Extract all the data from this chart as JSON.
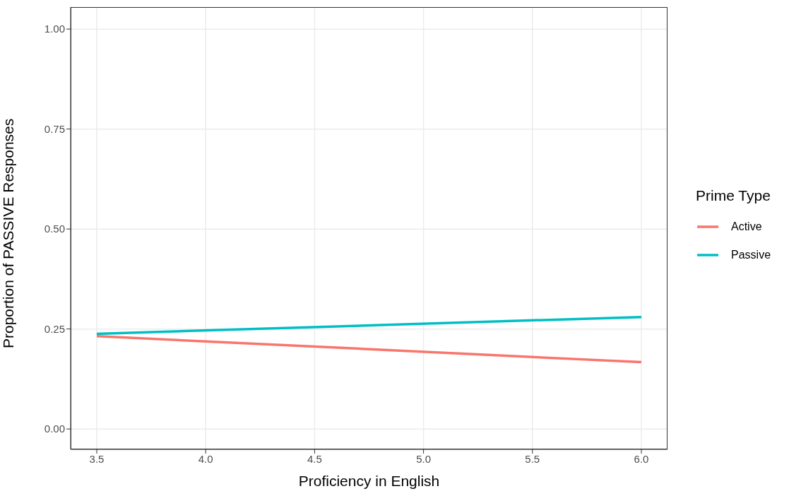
{
  "chart_data": {
    "type": "line",
    "xlabel": "Proficiency in English",
    "ylabel": "Proportion of PASSIVE Responses",
    "legend_title": "Prime Type",
    "x": [
      3.5,
      6.0
    ],
    "series": [
      {
        "name": "Active",
        "color": "#f8766d",
        "values": [
          0.232,
          0.167
        ]
      },
      {
        "name": "Passive",
        "color": "#00bfc4",
        "values": [
          0.238,
          0.28
        ]
      }
    ],
    "xlim": [
      3.38,
      6.12
    ],
    "xticks": [
      {
        "value": 3.5,
        "label": "3.5"
      },
      {
        "value": 4,
        "label": "4.0"
      },
      {
        "value": 4.5,
        "label": "4.5"
      },
      {
        "value": 5,
        "label": "5.0"
      },
      {
        "value": 5.5,
        "label": "5.5"
      },
      {
        "value": 6,
        "label": "6.0"
      }
    ],
    "ylim": [
      -0.051,
      1.055
    ],
    "yticks": [
      {
        "value": 0,
        "label": "0.00"
      },
      {
        "value": 0.25,
        "label": "0.25"
      },
      {
        "value": 0.5,
        "label": "0.50"
      },
      {
        "value": 0.75,
        "label": "0.75"
      },
      {
        "value": 1,
        "label": "1.00"
      }
    ],
    "grid": true,
    "legend": "right",
    "marker": "none",
    "line_style": "solid"
  }
}
